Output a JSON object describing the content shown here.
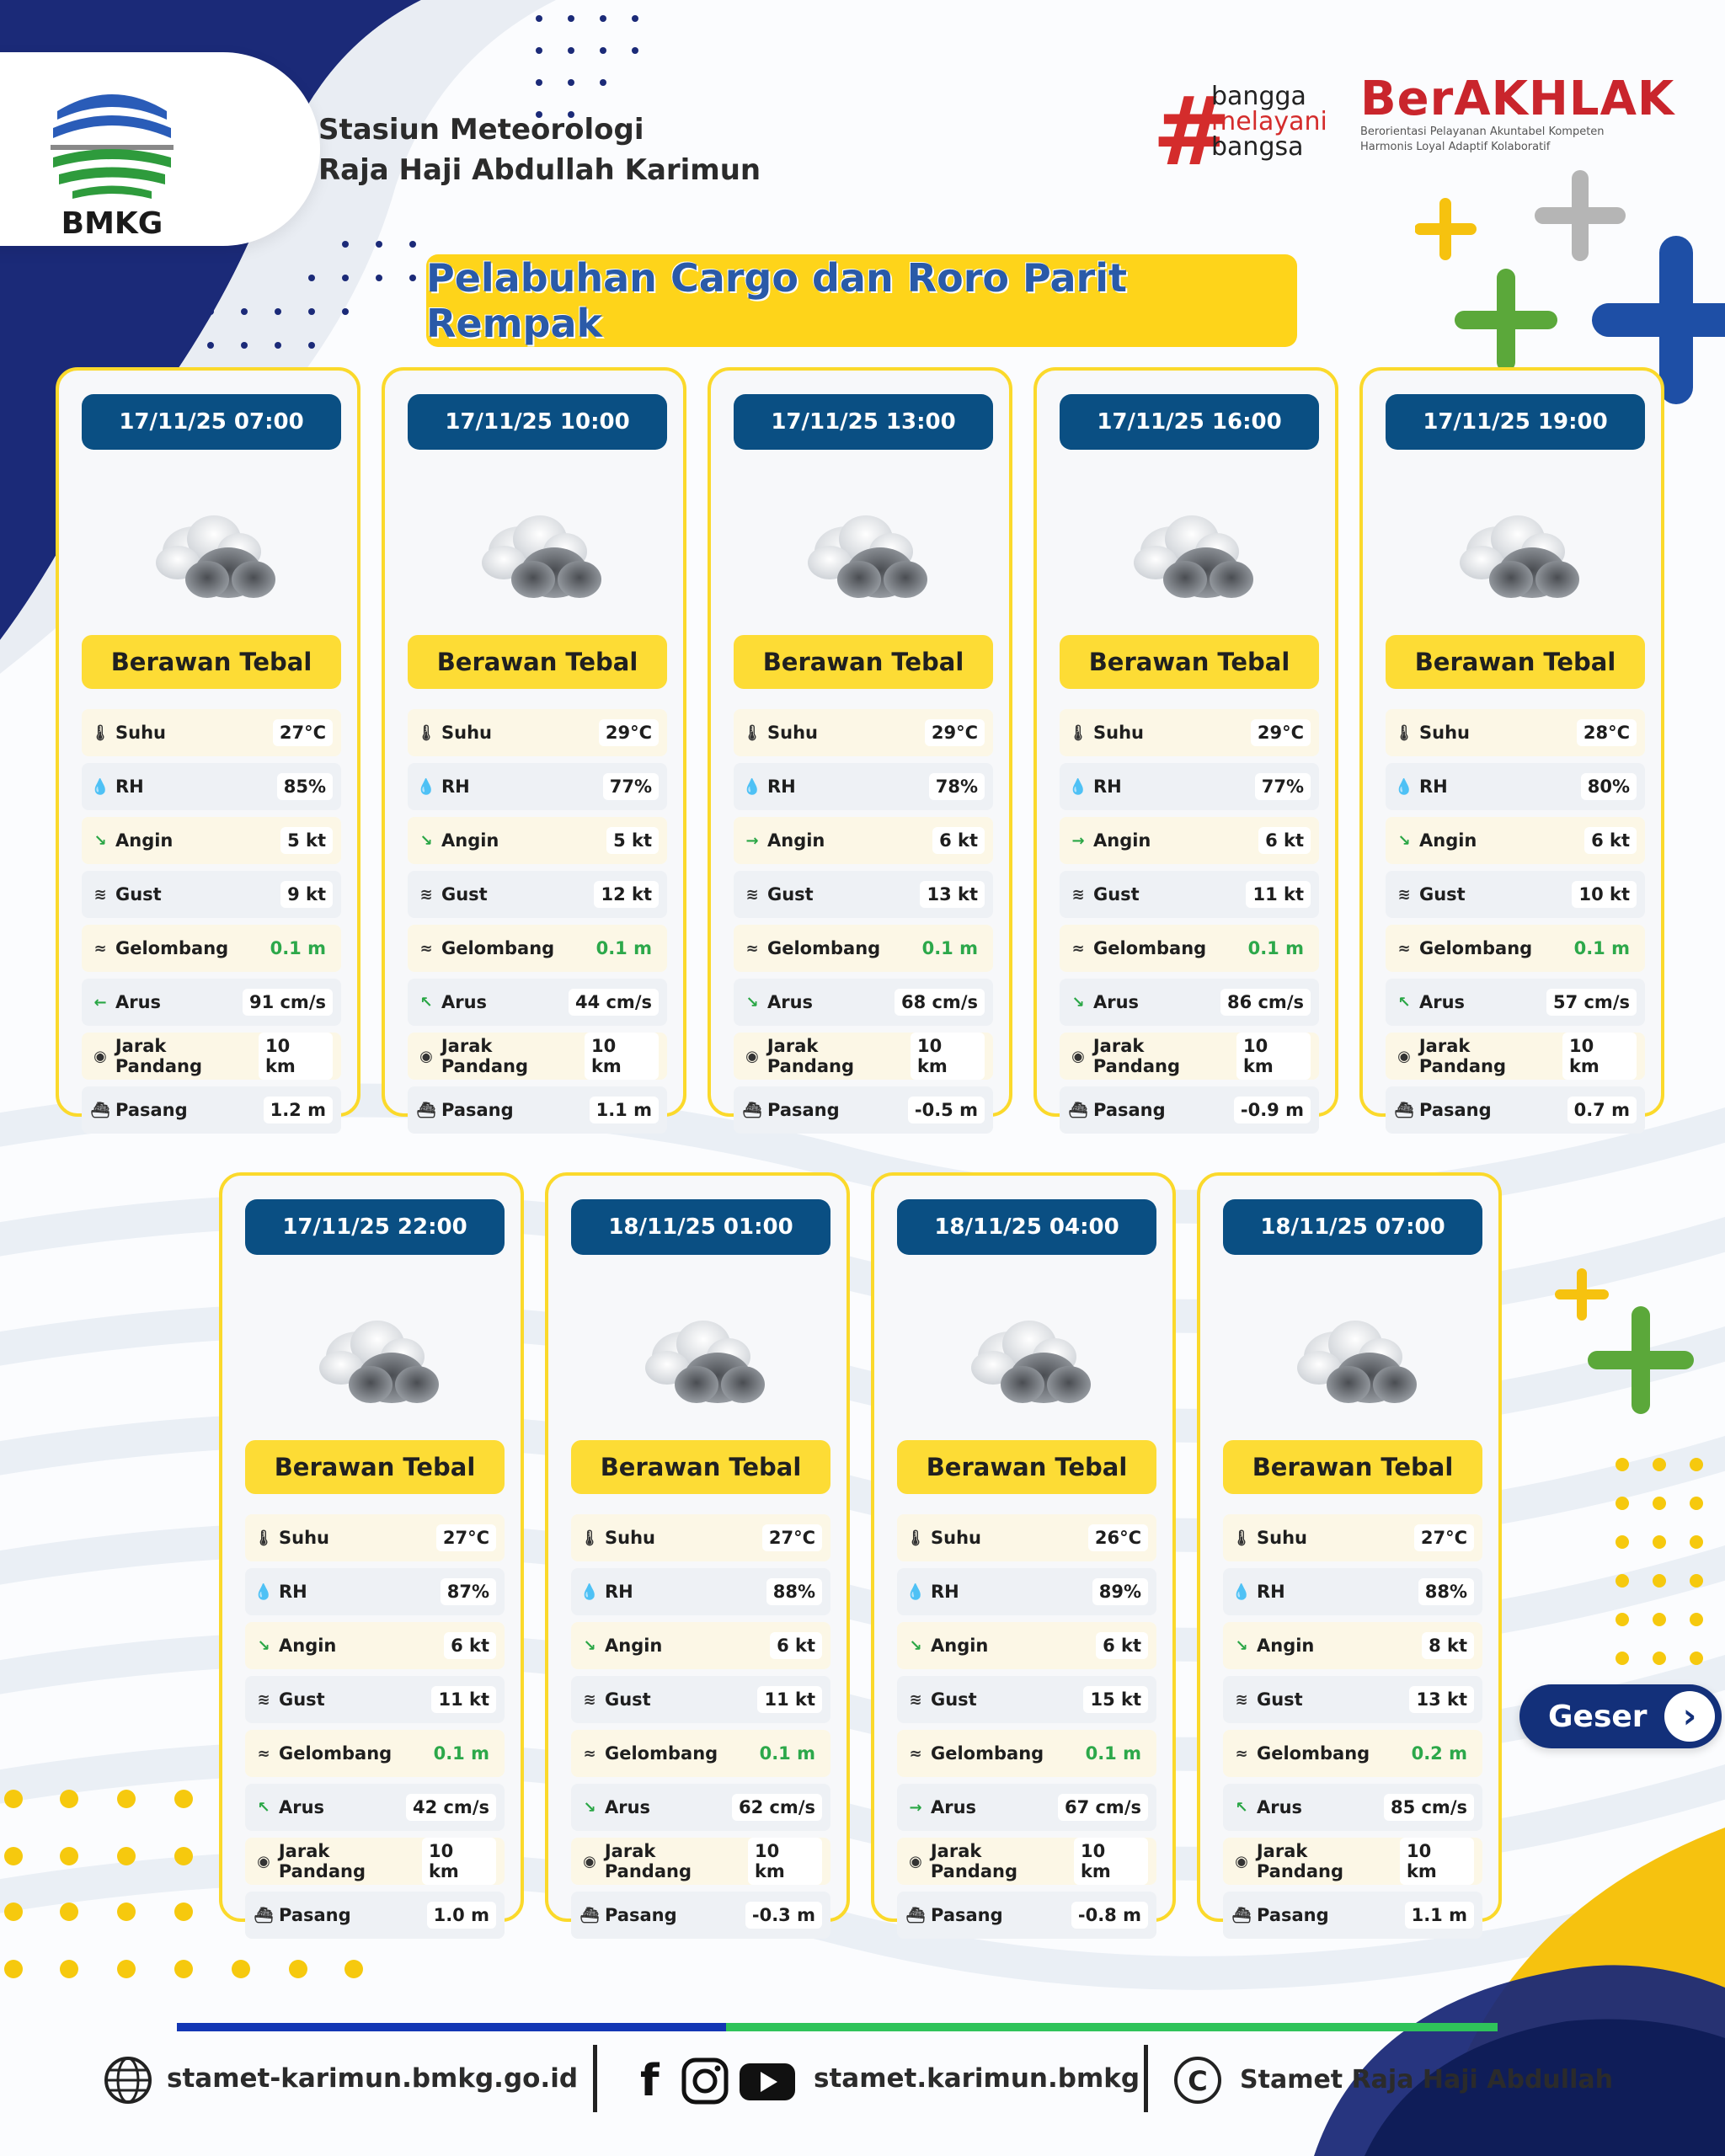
{
  "header": {
    "logo_text": "BMKG",
    "station_line1": "Stasiun Meteorologi",
    "station_line2": "Raja Haji Abdullah Karimun",
    "hashtag_line1": "bangga",
    "hashtag_line2": "melayani",
    "hashtag_line3": "bangsa",
    "berakhlak_title": "BerAKHLAK",
    "berakhlak_line1": "Berorientasi Pelayanan Akuntabel Kompeten",
    "berakhlak_line2": "Harmonis Loyal Adaptif Kolaboratif"
  },
  "title": "Pelabuhan Cargo dan Roro Parit Rempak",
  "labels": {
    "suhu": "Suhu",
    "rh": "RH",
    "angin": "Angin",
    "gust": "Gust",
    "gelombang": "Gelombang",
    "arus": "Arus",
    "jarak": "Jarak Pandang",
    "pasang": "Pasang"
  },
  "cards": [
    {
      "time": "17/11/25 07:00",
      "cond": "Berawan Tebal",
      "suhu": "27°C",
      "rh": "85%",
      "angin": "5 kt",
      "angin_dir": "↘",
      "gust": "9 kt",
      "gelombang": "0.1 m",
      "arus": "91 cm/s",
      "arus_dir": "←",
      "jarak": "10 km",
      "pasang": "1.2 m"
    },
    {
      "time": "17/11/25 10:00",
      "cond": "Berawan Tebal",
      "suhu": "29°C",
      "rh": "77%",
      "angin": "5 kt",
      "angin_dir": "↘",
      "gust": "12 kt",
      "gelombang": "0.1 m",
      "arus": "44 cm/s",
      "arus_dir": "↖",
      "jarak": "10 km",
      "pasang": "1.1 m"
    },
    {
      "time": "17/11/25 13:00",
      "cond": "Berawan Tebal",
      "suhu": "29°C",
      "rh": "78%",
      "angin": "6 kt",
      "angin_dir": "→",
      "gust": "13 kt",
      "gelombang": "0.1 m",
      "arus": "68 cm/s",
      "arus_dir": "↘",
      "jarak": "10 km",
      "pasang": "-0.5 m"
    },
    {
      "time": "17/11/25 16:00",
      "cond": "Berawan Tebal",
      "suhu": "29°C",
      "rh": "77%",
      "angin": "6 kt",
      "angin_dir": "→",
      "gust": "11 kt",
      "gelombang": "0.1 m",
      "arus": "86 cm/s",
      "arus_dir": "↘",
      "jarak": "10 km",
      "pasang": "-0.9 m"
    },
    {
      "time": "17/11/25 19:00",
      "cond": "Berawan Tebal",
      "suhu": "28°C",
      "rh": "80%",
      "angin": "6 kt",
      "angin_dir": "↘",
      "gust": "10 kt",
      "gelombang": "0.1 m",
      "arus": "57 cm/s",
      "arus_dir": "↖",
      "jarak": "10 km",
      "pasang": "0.7 m"
    },
    {
      "time": "17/11/25 22:00",
      "cond": "Berawan Tebal",
      "suhu": "27°C",
      "rh": "87%",
      "angin": "6 kt",
      "angin_dir": "↘",
      "gust": "11 kt",
      "gelombang": "0.1 m",
      "arus": "42 cm/s",
      "arus_dir": "↖",
      "jarak": "10 km",
      "pasang": "1.0 m"
    },
    {
      "time": "18/11/25 01:00",
      "cond": "Berawan Tebal",
      "suhu": "27°C",
      "rh": "88%",
      "angin": "6 kt",
      "angin_dir": "↘",
      "gust": "11 kt",
      "gelombang": "0.1 m",
      "arus": "62 cm/s",
      "arus_dir": "↘",
      "jarak": "10 km",
      "pasang": "-0.3 m"
    },
    {
      "time": "18/11/25 04:00",
      "cond": "Berawan Tebal",
      "suhu": "26°C",
      "rh": "89%",
      "angin": "6 kt",
      "angin_dir": "↘",
      "gust": "15 kt",
      "gelombang": "0.1 m",
      "arus": "67 cm/s",
      "arus_dir": "→",
      "jarak": "10 km",
      "pasang": "-0.8 m"
    },
    {
      "time": "18/11/25 07:00",
      "cond": "Berawan Tebal",
      "suhu": "27°C",
      "rh": "88%",
      "angin": "8 kt",
      "angin_dir": "↘",
      "gust": "13 kt",
      "gelombang": "0.2 m",
      "arus": "85 cm/s",
      "arus_dir": "↖",
      "jarak": "10 km",
      "pasang": "1.1 m"
    }
  ],
  "geser_label": "Geser",
  "footer": {
    "website": "stamet-karimun.bmkg.go.id",
    "social": "stamet.karimun.bmkg",
    "copyright": "Stamet Raja Haji Abdullah"
  },
  "colors": {
    "navy": "#0a4f83",
    "yellow": "#fddc35",
    "green": "#2ca84a",
    "brand_blue": "#13307a",
    "red": "#c9252c"
  }
}
